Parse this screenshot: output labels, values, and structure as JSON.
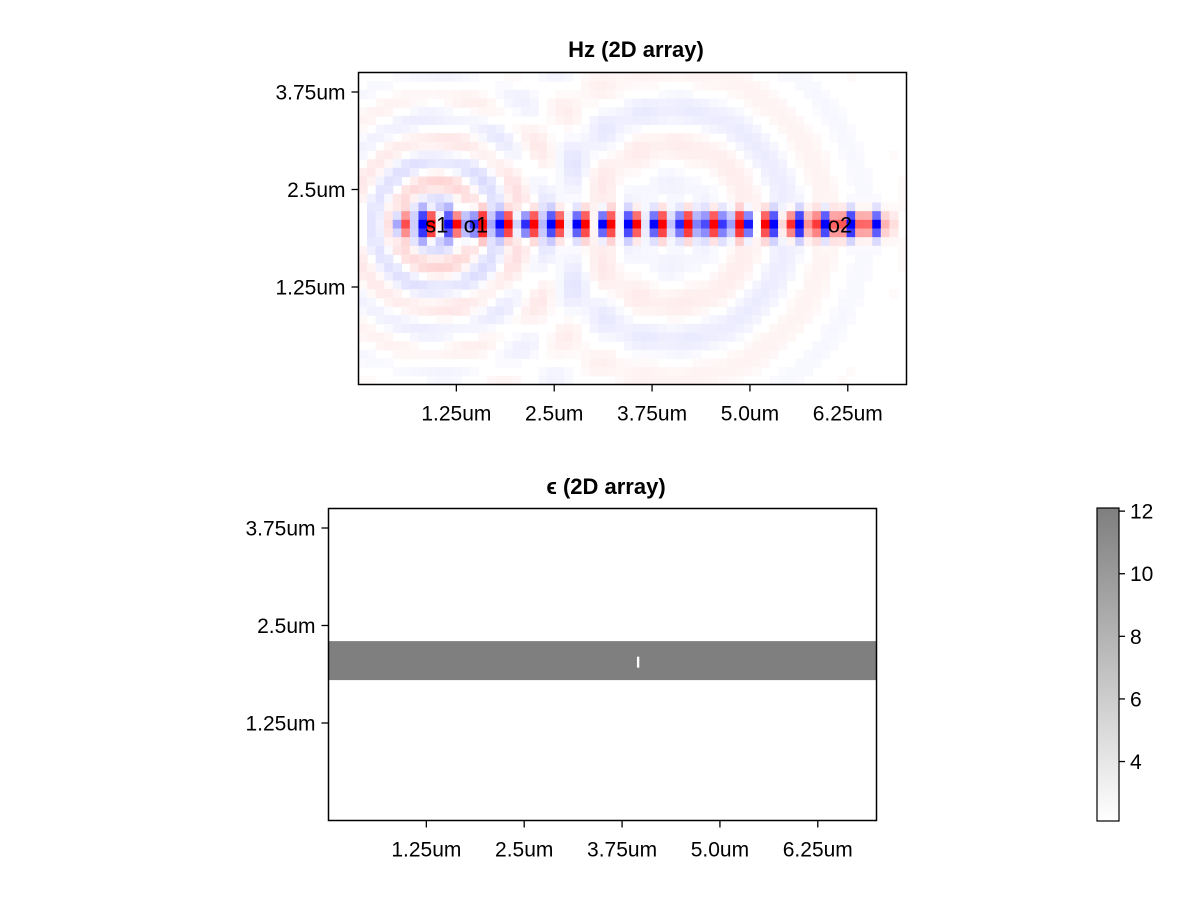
{
  "chart_data": [
    {
      "id": "hz",
      "type": "heatmap",
      "title": "Hz (2D array)",
      "xlim": [
        0.0,
        7.0
      ],
      "ylim": [
        0.0,
        4.0
      ],
      "x_ticks": [
        1.25,
        2.5,
        3.75,
        5.0,
        6.25
      ],
      "x_tick_labels": [
        "1.25um",
        "2.5um",
        "3.75um",
        "5.0um",
        "6.25um"
      ],
      "y_ticks": [
        1.25,
        2.5,
        3.75
      ],
      "y_tick_labels": [
        "1.25um",
        "2.5um",
        "3.75um"
      ],
      "colormap": "diverging blue-white-red",
      "colors": {
        "positive": "#ff0000",
        "negative": "#0000ff",
        "zero": "#ffffff"
      },
      "grid": false,
      "field_description": {
        "waveguide_center_y": 2.05,
        "waveguide_half_width": 0.15,
        "x_start": 0.35,
        "x_end": 6.9,
        "wavelength_um": 0.55,
        "source_x": 1.0,
        "scatter_center_x": 4.0
      },
      "annotations": [
        {
          "text": "s1",
          "x": 1.0,
          "y": 2.05
        },
        {
          "text": "o1",
          "x": 1.5,
          "y": 2.05
        },
        {
          "text": "o2",
          "x": 6.15,
          "y": 2.05
        }
      ]
    },
    {
      "id": "epsilon",
      "type": "heatmap",
      "title": "ϵ (2D array)",
      "xlim": [
        0.0,
        7.0
      ],
      "ylim": [
        0.0,
        4.0
      ],
      "x_ticks": [
        1.25,
        2.5,
        3.75,
        5.0,
        6.25
      ],
      "x_tick_labels": [
        "1.25um",
        "2.5um",
        "3.75um",
        "5.0um",
        "6.25um"
      ],
      "y_ticks": [
        1.25,
        2.5,
        3.75
      ],
      "y_tick_labels": [
        "1.25um",
        "2.5um",
        "3.75um"
      ],
      "colormap": "grays (white to gray)",
      "grid": false,
      "background_value": 2.1,
      "regions": [
        {
          "name": "waveguide",
          "x": [
            0.0,
            7.0
          ],
          "y": [
            1.8,
            2.3
          ],
          "value": 12.1
        },
        {
          "name": "gap",
          "x": [
            3.94,
            3.97
          ],
          "y": [
            1.96,
            2.1
          ],
          "value": 2.1
        }
      ],
      "colorbar": {
        "range": [
          2.1,
          12.1
        ],
        "ticks": [
          4,
          6,
          8,
          10,
          12
        ],
        "tick_labels": [
          "4",
          "6",
          "8",
          "10",
          "12"
        ],
        "colors": {
          "low": "#ffffff",
          "high": "#7f7f7f"
        }
      }
    }
  ]
}
